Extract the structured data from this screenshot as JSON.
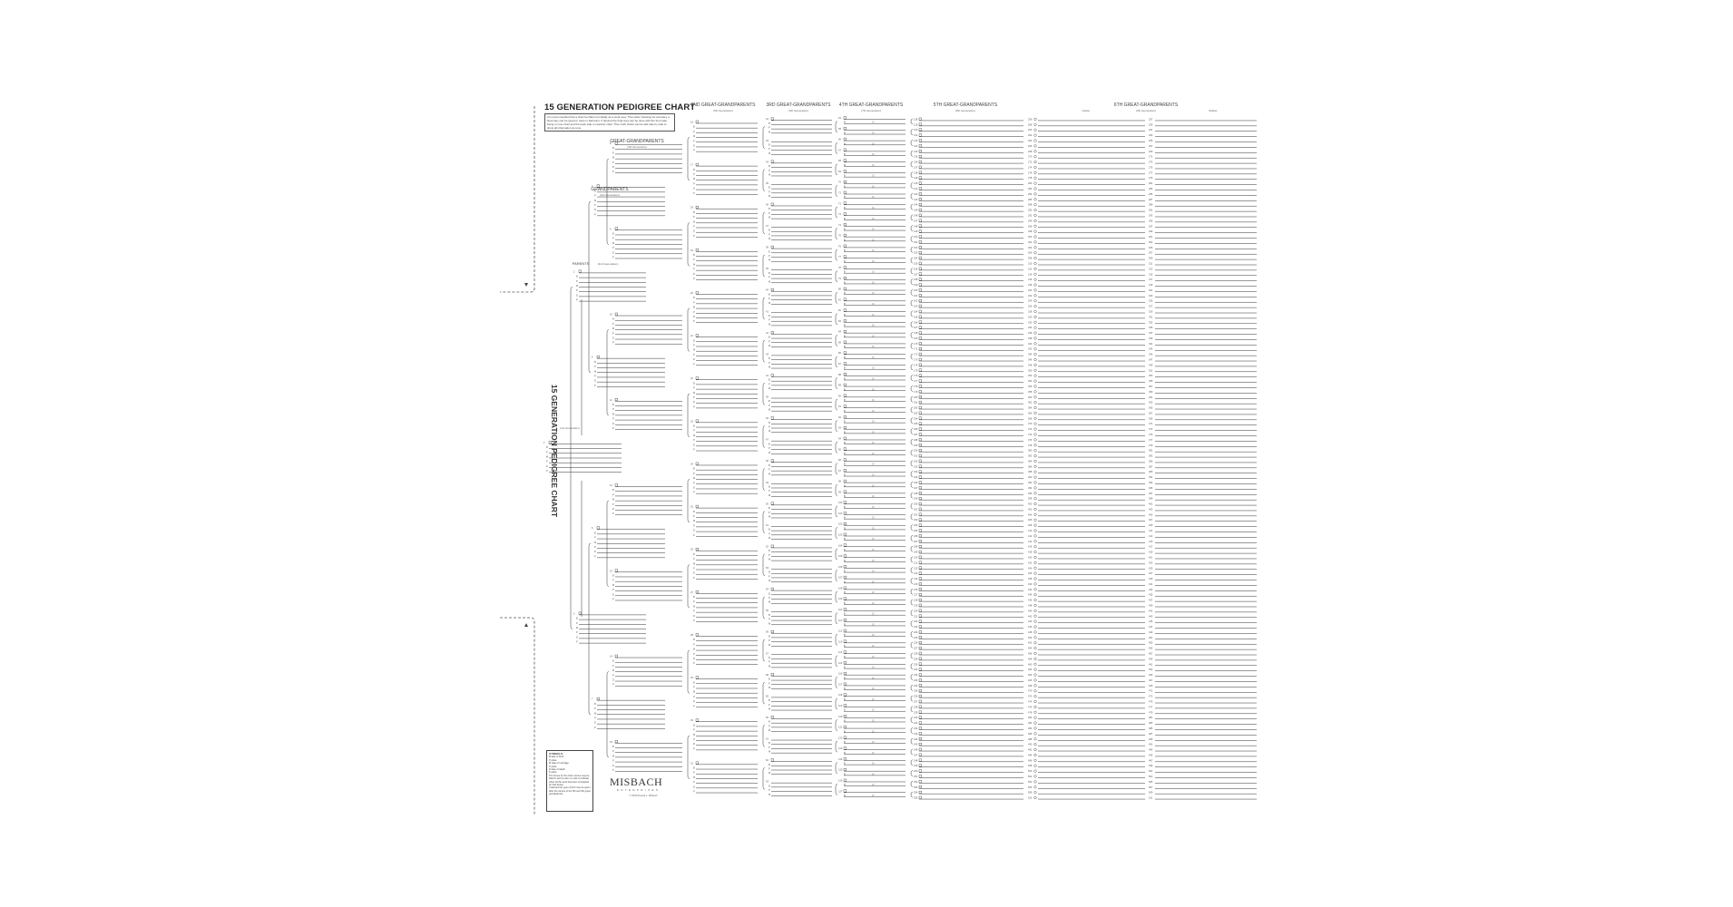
{
  "title": "15 GENERATION PEDIGREE CHART",
  "intro": "It is recommended that a chart be filled out initially as a work copy. Then after checking for accuracy a final copy can be typed or done in ball point. If desired the final copy can be done with the front side being on one chart and the back side on another chart. Then both charts can be laid side by side to show all information at once.",
  "vertical_title": "15 GENERATION PEDIGREE CHART",
  "headers": {
    "gen1": {
      "sub": "(1st Generation)"
    },
    "parents": {
      "label": "PARENTS",
      "sub": "(2nd Generation)"
    },
    "grandparents": {
      "label": "GRANDPARENTS",
      "sub": "(3rd Generation)"
    },
    "great": {
      "label": "GREAT-GRANDPARENTS",
      "sub": "(4th Generation)"
    },
    "g2": {
      "label": "2ND GREAT-GRANDPARENTS",
      "sub": "(5th Generation)"
    },
    "g3": {
      "label": "3RD GREAT-GRANDPARENTS",
      "sub": "(6th Generation)"
    },
    "g4": {
      "label": "4TH GREAT-GRANDPARENTS",
      "sub": "(7th Generation)"
    },
    "g5": {
      "label": "5TH GREAT-GRANDPARENTS",
      "sub": "(8th Generation)"
    },
    "g6": {
      "label": "6TH GREAT-GRANDPARENTS",
      "sub": "(9th Generation)",
      "father": "Father",
      "mother": "Mother"
    }
  },
  "field_labels": [
    "B",
    "P",
    "M",
    "P",
    "D",
    "P"
  ],
  "numbering": {
    "first": 1,
    "last": 511
  },
  "legend": {
    "title": "SYMBOLS:",
    "items": [
      "B   date of birth",
      "P   place",
      "M   date of marriage",
      "P   place",
      "D   date of death",
      "P   place"
    ],
    "note1": "The boxes by the circle names may be filled in with a color or mark to indicate when all the work has been completed for that family.",
    "note2": "If desired the year of birth may be given after the names of the 5th and 6th great grandparents."
  },
  "logo": {
    "name": "MISBACH",
    "sub": "ENTERPRISES",
    "copyright": "© 2003 Russell L. Misbach"
  },
  "colors": {
    "line": "#333333",
    "text": "#222222",
    "background": "#ffffff"
  }
}
